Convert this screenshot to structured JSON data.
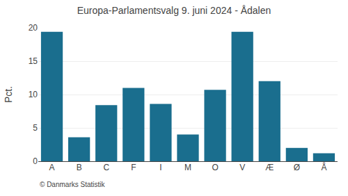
{
  "chart_data": {
    "type": "bar",
    "title": "Europa-Parlamentsvalg 9. juni 2024 - Ådalen",
    "ylabel": "Pct.",
    "annotations": [
      "© Danmarks Statistik"
    ],
    "categories": [
      "A",
      "B",
      "C",
      "F",
      "I",
      "M",
      "O",
      "V",
      "Æ",
      "Ø",
      "Å"
    ],
    "values": [
      19.4,
      3.6,
      8.4,
      11.0,
      8.6,
      4.0,
      10.7,
      19.4,
      12.0,
      2.0,
      1.2
    ],
    "color": "#1a6e8e",
    "ylim": [
      0,
      20
    ],
    "yticks": [
      0,
      5,
      10,
      15,
      20
    ],
    "grid": true
  }
}
